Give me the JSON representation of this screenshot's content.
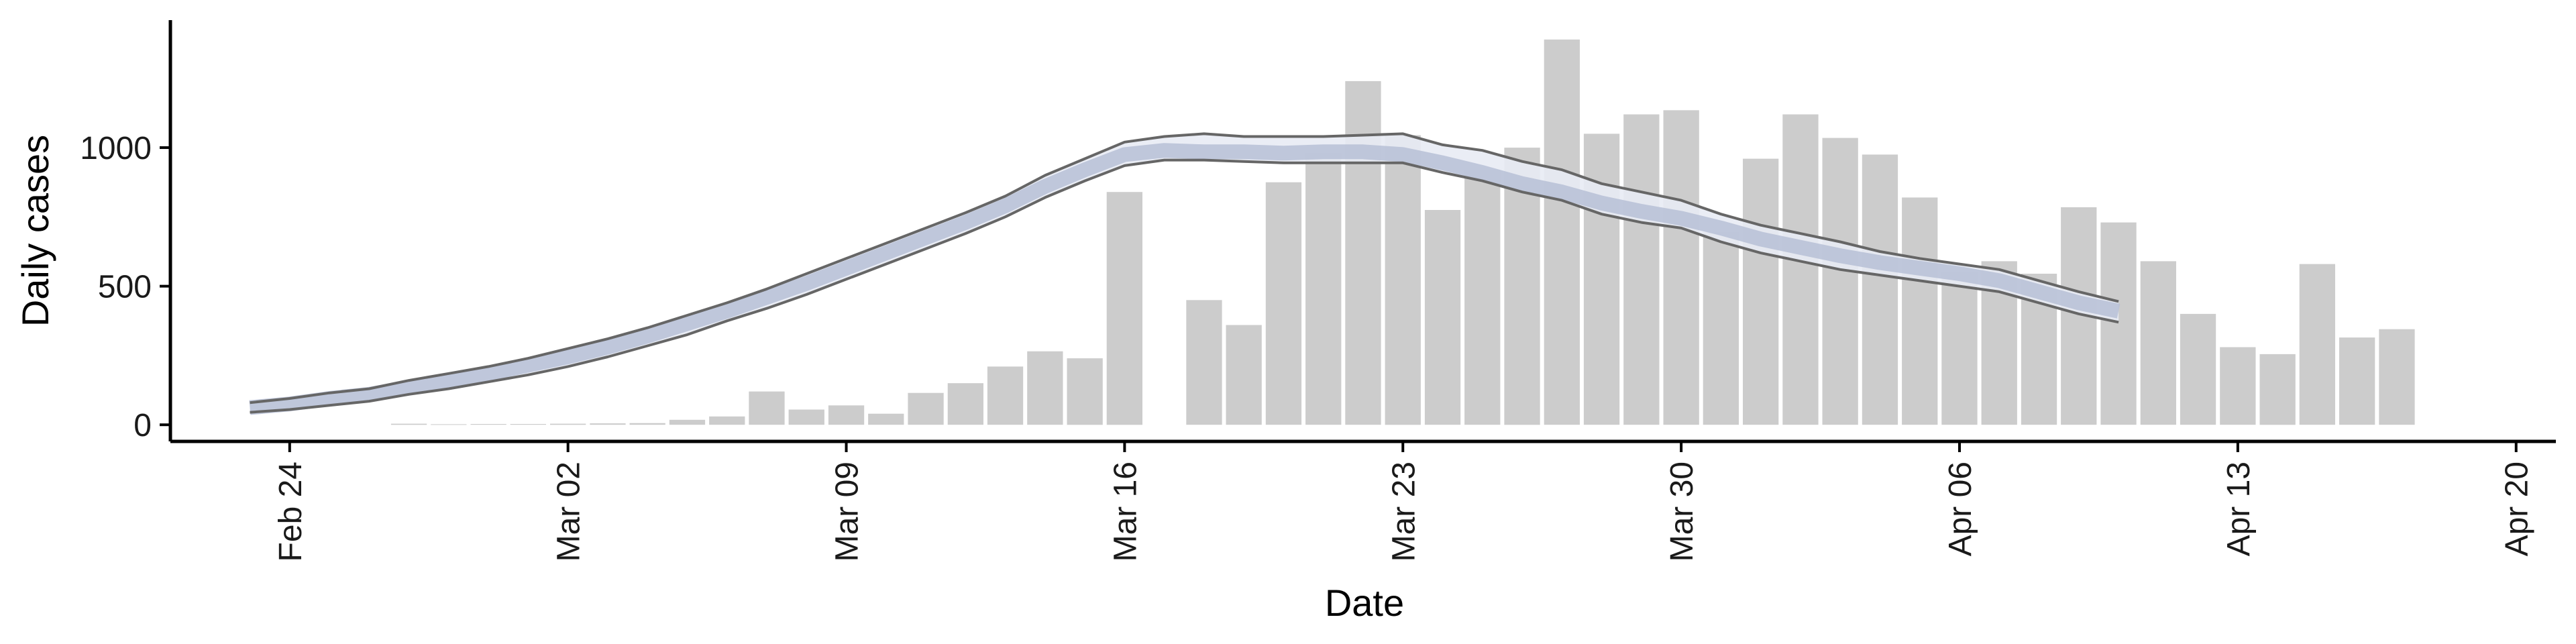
{
  "chart_data": {
    "type": "bar",
    "xlabel": "Date",
    "ylabel": "Daily cases",
    "xlim": [
      "2020-02-21",
      "2020-04-21"
    ],
    "ylim": [
      -60,
      1460
    ],
    "x_ticks": [
      "Feb 24",
      "Mar 02",
      "Mar 09",
      "Mar 16",
      "Mar 23",
      "Mar 30",
      "Apr 06",
      "Apr 13",
      "Apr 20"
    ],
    "x_tick_dates": [
      "2020-02-24",
      "2020-03-02",
      "2020-03-09",
      "2020-03-16",
      "2020-03-23",
      "2020-03-30",
      "2020-04-06",
      "2020-04-13",
      "2020-04-20"
    ],
    "y_ticks": [
      0,
      500,
      1000
    ],
    "grid": false,
    "bars": {
      "color": "#cccccc",
      "dates": [
        "2020-02-27",
        "2020-02-28",
        "2020-02-29",
        "2020-03-01",
        "2020-03-02",
        "2020-03-03",
        "2020-03-04",
        "2020-03-05",
        "2020-03-06",
        "2020-03-07",
        "2020-03-08",
        "2020-03-09",
        "2020-03-10",
        "2020-03-11",
        "2020-03-12",
        "2020-03-13",
        "2020-03-14",
        "2020-03-15",
        "2020-03-16",
        "2020-03-17",
        "2020-03-18",
        "2020-03-19",
        "2020-03-20",
        "2020-03-21",
        "2020-03-22",
        "2020-03-23",
        "2020-03-24",
        "2020-03-25",
        "2020-03-26",
        "2020-03-27",
        "2020-03-28",
        "2020-03-29",
        "2020-03-30",
        "2020-03-31",
        "2020-04-01",
        "2020-04-02",
        "2020-04-03",
        "2020-04-04",
        "2020-04-05",
        "2020-04-06",
        "2020-04-07",
        "2020-04-08",
        "2020-04-09",
        "2020-04-10",
        "2020-04-11",
        "2020-04-12",
        "2020-04-13",
        "2020-04-14",
        "2020-04-15",
        "2020-04-16",
        "2020-04-17",
        "2020-04-18",
        "2020-04-19"
      ],
      "values": [
        4,
        2,
        3,
        3,
        4,
        5,
        6,
        18,
        30,
        120,
        55,
        70,
        40,
        115,
        150,
        210,
        265,
        240,
        840,
        0,
        450,
        360,
        875,
        980,
        1240,
        1045,
        775,
        920,
        1000,
        1390,
        1050,
        1120,
        1135,
        695,
        960,
        1120,
        1035,
        975,
        820,
        550,
        590,
        545,
        785,
        730,
        590,
        400,
        280,
        255,
        580,
        315,
        345,
        0,
        0
      ]
    },
    "estimate": {
      "color": "#b7c0d6",
      "band_color": "#e8ebf4",
      "bound_color": "#666666",
      "dates": [
        "2020-02-23",
        "2020-02-24",
        "2020-02-25",
        "2020-02-26",
        "2020-02-27",
        "2020-02-28",
        "2020-02-29",
        "2020-03-01",
        "2020-03-02",
        "2020-03-03",
        "2020-03-04",
        "2020-03-05",
        "2020-03-06",
        "2020-03-07",
        "2020-03-08",
        "2020-03-09",
        "2020-03-10",
        "2020-03-11",
        "2020-03-12",
        "2020-03-13",
        "2020-03-14",
        "2020-03-15",
        "2020-03-16",
        "2020-03-17",
        "2020-03-18",
        "2020-03-19",
        "2020-03-20",
        "2020-03-21",
        "2020-03-22",
        "2020-03-23",
        "2020-03-24",
        "2020-03-25",
        "2020-03-26",
        "2020-03-27",
        "2020-03-28",
        "2020-03-29",
        "2020-03-30",
        "2020-03-31",
        "2020-04-01",
        "2020-04-02",
        "2020-04-03",
        "2020-04-04",
        "2020-04-05",
        "2020-04-06",
        "2020-04-07",
        "2020-04-08",
        "2020-04-09",
        "2020-04-10"
      ],
      "mean": [
        62,
        75,
        95,
        110,
        135,
        160,
        185,
        215,
        245,
        280,
        320,
        365,
        410,
        460,
        510,
        565,
        620,
        675,
        730,
        790,
        860,
        920,
        975,
        990,
        985,
        985,
        980,
        985,
        985,
        975,
        945,
        910,
        870,
        840,
        800,
        770,
        745,
        710,
        670,
        640,
        610,
        585,
        565,
        545,
        520,
        480,
        440,
        410
      ],
      "upper": [
        80,
        95,
        115,
        130,
        160,
        185,
        210,
        240,
        275,
        310,
        350,
        395,
        440,
        490,
        545,
        600,
        655,
        710,
        765,
        825,
        900,
        960,
        1020,
        1040,
        1050,
        1040,
        1040,
        1040,
        1045,
        1050,
        1010,
        990,
        950,
        920,
        870,
        840,
        810,
        760,
        720,
        690,
        660,
        625,
        600,
        580,
        560,
        520,
        480,
        445
      ],
      "lower": [
        45,
        55,
        70,
        85,
        110,
        130,
        155,
        180,
        210,
        245,
        285,
        325,
        375,
        420,
        470,
        525,
        580,
        635,
        690,
        750,
        820,
        880,
        935,
        955,
        955,
        950,
        945,
        945,
        945,
        945,
        910,
        880,
        840,
        810,
        760,
        730,
        710,
        660,
        620,
        590,
        560,
        540,
        520,
        500,
        480,
        440,
        400,
        370
      ]
    }
  }
}
